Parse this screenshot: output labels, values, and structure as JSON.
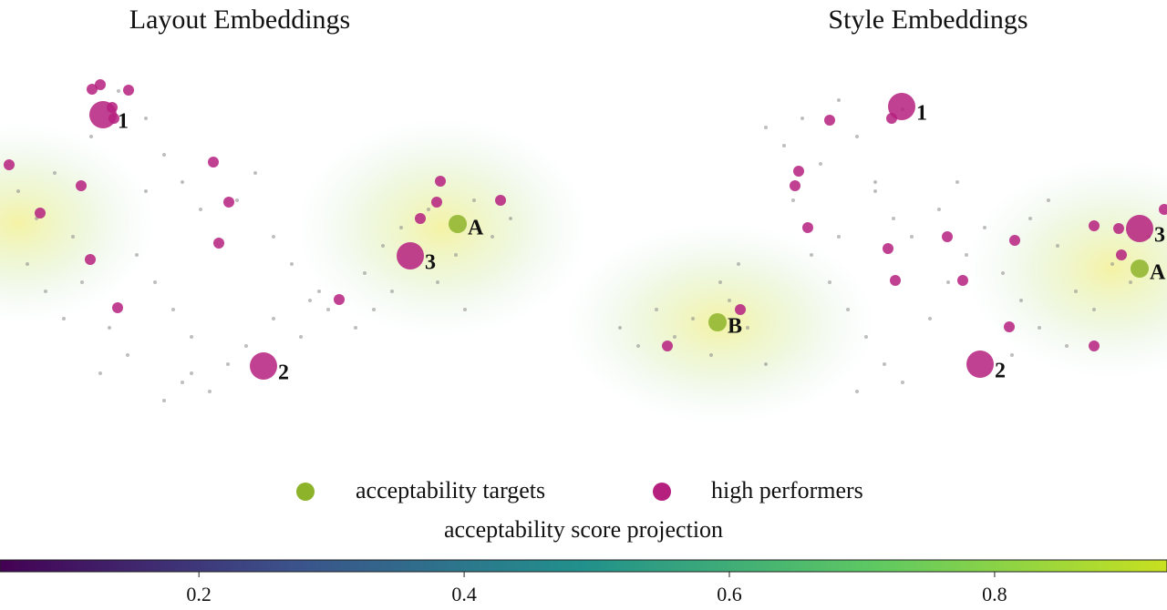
{
  "chart_data": [
    {
      "type": "scatter",
      "title": "Layout Embeddings",
      "xlim": [
        0,
        640
      ],
      "ylim": [
        0,
        400
      ],
      "series": [
        {
          "color": "#888888",
          "x": [
            20,
            40,
            60,
            80,
            100,
            130,
            160,
            180,
            200,
            220,
            150,
            170,
            190,
            210,
            260,
            280,
            300,
            320,
            340,
            120,
            140,
            90,
            110,
            200,
            230,
            250,
            270,
            300,
            330,
            360,
            400,
            420,
            440,
            470,
            500,
            520,
            540,
            560,
            410,
            430,
            480,
            510,
            30,
            50,
            70,
            180,
            210,
            160,
            350,
            390
          ],
          "y": [
            250,
            220,
            270,
            200,
            310,
            360,
            330,
            290,
            260,
            230,
            180,
            150,
            120,
            90,
            240,
            270,
            200,
            170,
            130,
            100,
            70,
            150,
            50,
            40,
            30,
            60,
            80,
            110,
            90,
            120,
            160,
            190,
            210,
            230,
            180,
            240,
            200,
            220,
            120,
            140,
            150,
            120,
            170,
            140,
            110,
            20,
            50,
            250,
            140,
            100
          ]
        },
        {
          "name": "acceptability targets",
          "color": "#8db32a",
          "x": [
            502
          ],
          "y": [
            214
          ],
          "labels": [
            "A"
          ]
        },
        {
          "name": "high performers",
          "color": "#b5207f",
          "x": [
            101,
            110,
            141,
            123,
            125,
            10,
            89,
            44,
            234,
            251,
            240,
            99,
            129,
            483,
            479,
            461,
            549,
            372,
            113,
            289,
            450
          ],
          "y": [
            362,
            367,
            361,
            342,
            330,
            279,
            256,
            226,
            282,
            238,
            193,
            175,
            122,
            261,
            238,
            220,
            240,
            131,
            334,
            58,
            179
          ],
          "labels": [
            null,
            null,
            null,
            null,
            null,
            null,
            null,
            null,
            null,
            null,
            null,
            null,
            null,
            null,
            null,
            null,
            null,
            null,
            "1",
            "2",
            "3"
          ]
        }
      ]
    },
    {
      "type": "scatter",
      "title": "Style Embeddings",
      "xlim": [
        0,
        640
      ],
      "ylim": [
        0,
        400
      ],
      "series": [
        {
          "color": "#888888",
          "x": [
            40,
            60,
            80,
            100,
            120,
            140,
            160,
            180,
            200,
            150,
            170,
            220,
            240,
            260,
            280,
            300,
            320,
            340,
            360,
            250,
            270,
            290,
            310,
            330,
            350,
            380,
            400,
            420,
            440,
            460,
            480,
            500,
            520,
            540,
            560,
            580,
            600,
            620,
            470,
            490,
            510,
            530,
            300,
            320,
            200,
            230,
            390,
            410,
            280,
            350
          ],
          "y": [
            100,
            80,
            120,
            90,
            110,
            70,
            130,
            100,
            60,
            150,
            170,
            300,
            330,
            280,
            350,
            310,
            260,
            220,
            200,
            180,
            150,
            120,
            90,
            60,
            40,
            110,
            150,
            180,
            210,
            160,
            130,
            100,
            190,
            140,
            120,
            170,
            150,
            200,
            70,
            220,
            240,
            80,
            30,
            250,
            320,
            240,
            230,
            260,
            200,
            340
          ]
        },
        {
          "color": "#8db32a",
          "x": [
            610,
            147
          ],
          "y": [
            165,
            106
          ],
          "labels": [
            "A",
            "B"
          ]
        },
        {
          "color": "#b5207f",
          "x": [
            270,
            338,
            236,
            232,
            246,
            334,
            342,
            399,
            416,
            473,
            467,
            560,
            560,
            587,
            590,
            637,
            172,
            92,
            349,
            435,
            610
          ],
          "y": [
            328,
            330,
            272,
            256,
            210,
            187,
            152,
            200,
            152,
            196,
            101,
            80,
            212,
            209,
            180,
            230,
            120,
            80,
            343,
            60,
            209
          ],
          "labels": [
            null,
            null,
            null,
            null,
            null,
            null,
            null,
            null,
            null,
            null,
            null,
            null,
            null,
            null,
            null,
            null,
            null,
            null,
            "1",
            "2",
            "3"
          ]
        }
      ]
    }
  ],
  "colorbar": {
    "label": "acceptability score projection",
    "lim": [
      0.05,
      0.93
    ],
    "ticks": [
      0.2,
      0.4,
      0.6,
      0.8
    ],
    "colors": [
      "#440154",
      "#3b528b",
      "#21918c",
      "#5ec962",
      "#c8e020"
    ]
  }
}
